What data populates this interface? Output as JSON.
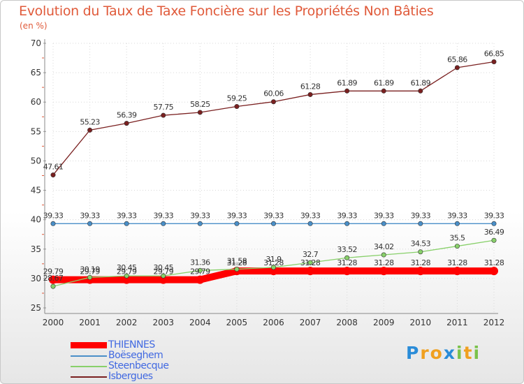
{
  "header": {
    "title": "Evolution du Taux de Taxe Foncière sur les Propriétés Non Bâties",
    "unit": "(en %)"
  },
  "logo": {
    "text": "Proxiti",
    "color_primary": "#2a8cd8",
    "color_secondary": "#f0a020",
    "color_accent": "#7ac24a"
  },
  "chart_data": {
    "type": "line",
    "title": "Evolution du Taux de Taxe Foncière sur les Propriétés Non Bâties",
    "ylabel": "(en %)",
    "xlabel": "",
    "x": [
      "2000",
      "2001",
      "2002",
      "2003",
      "2004",
      "2005",
      "2006",
      "2007",
      "2008",
      "2009",
      "2010",
      "2011",
      "2012"
    ],
    "ylim": [
      25,
      70
    ],
    "yticks": [
      25,
      30,
      35,
      40,
      45,
      50,
      55,
      60,
      65,
      70
    ],
    "grid": true,
    "legend_position": "bottom-left",
    "series": [
      {
        "name": "THIENNES",
        "color": "#ff0000",
        "values": [
          29.79,
          29.79,
          29.79,
          29.79,
          29.79,
          31.28,
          31.28,
          31.28,
          31.28,
          31.28,
          31.28,
          31.28,
          31.28
        ],
        "labels": [
          "29.79",
          "29.79",
          "29.79",
          "29.79",
          "29.79",
          "31.28",
          "31.28",
          "31.28",
          "31.28",
          "31.28",
          "31.28",
          "31.28",
          "31.28"
        ]
      },
      {
        "name": "Boëseghem",
        "color": "#4a8fc8",
        "values": [
          39.33,
          39.33,
          39.33,
          39.33,
          39.33,
          39.33,
          39.33,
          39.33,
          39.33,
          39.33,
          39.33,
          39.33,
          39.33
        ],
        "labels": [
          "39.33",
          "39.33",
          "39.33",
          "39.33",
          "39.33",
          "39.33",
          "39.33",
          "39.33",
          "39.33",
          "39.33",
          "39.33",
          "39.33",
          "39.33"
        ]
      },
      {
        "name": "Steenbecque",
        "color": "#88d06a",
        "values": [
          28.67,
          30.19,
          30.45,
          30.45,
          31.36,
          31.58,
          31.9,
          32.7,
          33.52,
          34.02,
          34.53,
          35.5,
          36.49
        ],
        "labels": [
          "28.67",
          "30.19",
          "30.45",
          "30.45",
          "31.36",
          "31.58",
          "31.9",
          "32.7",
          "33.52",
          "34.02",
          "34.53",
          "35.5",
          "36.49"
        ]
      },
      {
        "name": "Isbergues",
        "color": "#7a2020",
        "values": [
          47.61,
          55.23,
          56.39,
          57.75,
          58.25,
          59.25,
          60.06,
          61.28,
          61.89,
          61.89,
          61.89,
          65.86,
          66.85
        ],
        "labels": [
          "47.61",
          "55.23",
          "56.39",
          "57.75",
          "58.25",
          "59.25",
          "60.06",
          "61.28",
          "61.89",
          "61.89",
          "61.89",
          "65.86",
          "66.85"
        ]
      }
    ]
  }
}
